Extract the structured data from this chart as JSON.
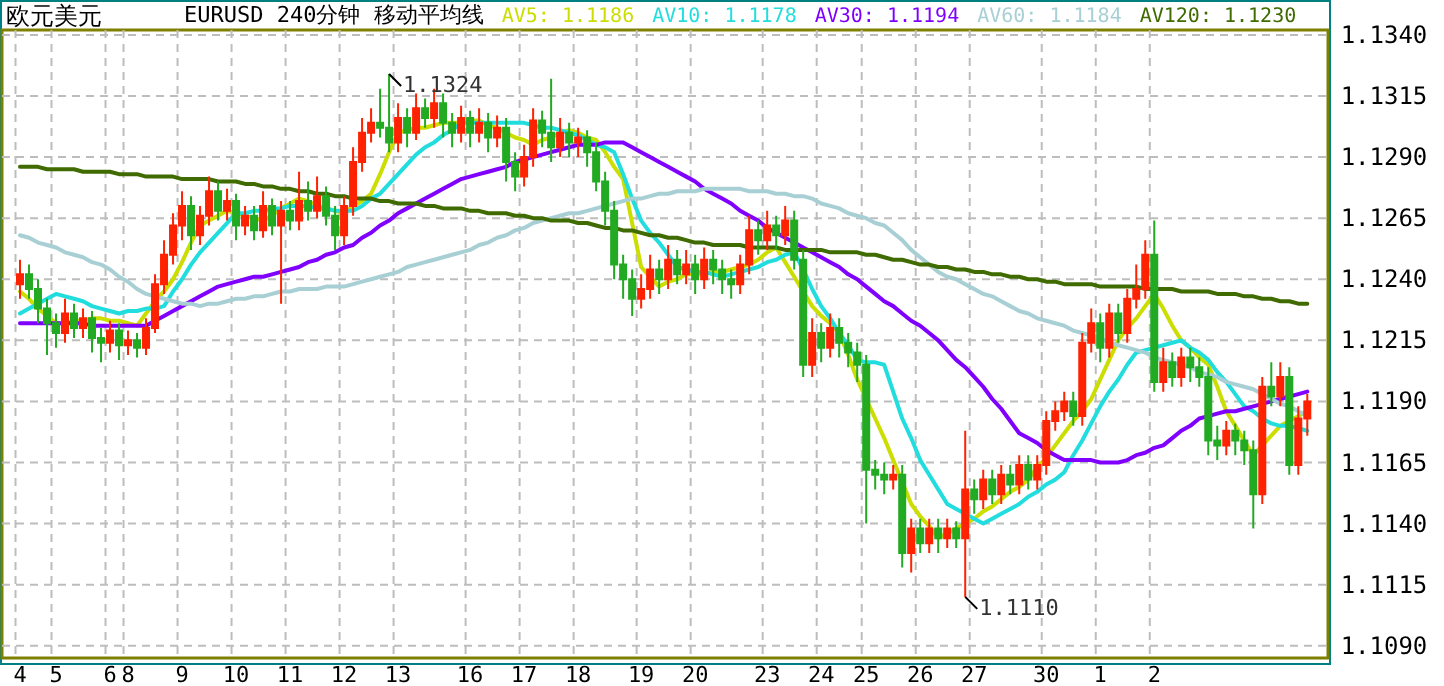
{
  "chart_data": {
    "type": "candlestick",
    "title": "欧元美元",
    "subtitle": "EURUSD 240分钟 移动平均线",
    "legend": "top",
    "grid": true,
    "ylim": [
      1.1085,
      1.1342
    ],
    "categories": [
      "4",
      null,
      null,
      null,
      "5",
      null,
      null,
      null,
      null,
      null,
      "6",
      null,
      "8",
      null,
      null,
      null,
      null,
      null,
      "9",
      null,
      null,
      null,
      null,
      null,
      "10",
      null,
      null,
      null,
      null,
      null,
      "11",
      null,
      null,
      null,
      null,
      null,
      "12",
      null,
      null,
      null,
      null,
      null,
      "13",
      null,
      null,
      null,
      null,
      null,
      null,
      null,
      "16",
      null,
      null,
      null,
      null,
      null,
      "17",
      null,
      null,
      null,
      null,
      null,
      "18",
      null,
      null,
      null,
      null,
      null,
      null,
      "19",
      null,
      null,
      null,
      null,
      null,
      "20",
      null,
      null,
      null,
      null,
      null,
      null,
      null,
      "23",
      null,
      null,
      null,
      null,
      null,
      "24",
      null,
      null,
      null,
      null,
      "25",
      null,
      null,
      null,
      null,
      null,
      "26",
      null,
      null,
      null,
      null,
      null,
      "27",
      null,
      null,
      null,
      null,
      null,
      null,
      null,
      "30",
      null,
      null,
      null,
      null,
      null,
      "1",
      null,
      null,
      null,
      null,
      null,
      "2",
      null,
      null,
      null,
      null,
      null,
      null,
      null,
      null,
      null,
      null,
      null,
      null,
      null,
      null,
      null,
      null,
      null
    ],
    "yticks": [
      {
        "value": 1.109,
        "label": "1.1090"
      },
      {
        "value": 1.1115,
        "label": "1.1115"
      },
      {
        "value": 1.114,
        "label": "1.1140"
      },
      {
        "value": 1.1165,
        "label": "1.1165"
      },
      {
        "value": 1.119,
        "label": "1.1190"
      },
      {
        "value": 1.1215,
        "label": "1.1215"
      },
      {
        "value": 1.124,
        "label": "1.1240"
      },
      {
        "value": 1.1265,
        "label": "1.1265"
      },
      {
        "value": 1.129,
        "label": "1.1290"
      },
      {
        "value": 1.1315,
        "label": "1.1315"
      },
      {
        "value": 1.134,
        "label": "1.1340"
      }
    ],
    "annotations": [
      "1.1324",
      "1.1110"
    ],
    "ohlc": [
      [
        1.1238,
        1.1248,
        1.1232,
        1.1242
      ],
      [
        1.1242,
        1.1246,
        1.1232,
        1.1236
      ],
      [
        1.1236,
        1.124,
        1.1222,
        1.1228
      ],
      [
        1.1228,
        1.1232,
        1.1209,
        1.1222
      ],
      [
        1.1222,
        1.1226,
        1.1212,
        1.1218
      ],
      [
        1.1218,
        1.1232,
        1.1214,
        1.1226
      ],
      [
        1.1226,
        1.123,
        1.1216,
        1.122
      ],
      [
        1.122,
        1.1228,
        1.1216,
        1.1224
      ],
      [
        1.1224,
        1.1227,
        1.121,
        1.1216
      ],
      [
        1.1216,
        1.122,
        1.1206,
        1.1214
      ],
      [
        1.1214,
        1.1223,
        1.121,
        1.1219
      ],
      [
        1.1219,
        1.1222,
        1.1207,
        1.1213
      ],
      [
        1.1213,
        1.1219,
        1.1209,
        1.1215
      ],
      [
        1.1215,
        1.1218,
        1.1208,
        1.1212
      ],
      [
        1.1212,
        1.1224,
        1.1209,
        1.122
      ],
      [
        1.122,
        1.1242,
        1.1218,
        1.1238
      ],
      [
        1.1238,
        1.1256,
        1.1234,
        1.125
      ],
      [
        1.125,
        1.1267,
        1.1246,
        1.1262
      ],
      [
        1.1262,
        1.1276,
        1.1256,
        1.127
      ],
      [
        1.127,
        1.1274,
        1.1252,
        1.1258
      ],
      [
        1.1258,
        1.127,
        1.1254,
        1.1266
      ],
      [
        1.1266,
        1.1282,
        1.1262,
        1.1276
      ],
      [
        1.1276,
        1.128,
        1.1264,
        1.1268
      ],
      [
        1.1268,
        1.1277,
        1.1264,
        1.1272
      ],
      [
        1.1272,
        1.1275,
        1.1256,
        1.1262
      ],
      [
        1.1262,
        1.127,
        1.1258,
        1.1266
      ],
      [
        1.1266,
        1.127,
        1.1256,
        1.126
      ],
      [
        1.126,
        1.1276,
        1.1257,
        1.127
      ],
      [
        1.127,
        1.1273,
        1.1258,
        1.1262
      ],
      [
        1.1262,
        1.1272,
        1.123,
        1.1268
      ],
      [
        1.1268,
        1.1272,
        1.126,
        1.1264
      ],
      [
        1.1264,
        1.1284,
        1.126,
        1.1272
      ],
      [
        1.1272,
        1.128,
        1.1264,
        1.1268
      ],
      [
        1.1268,
        1.1282,
        1.1265,
        1.1274
      ],
      [
        1.1274,
        1.1278,
        1.1262,
        1.1266
      ],
      [
        1.1266,
        1.127,
        1.1252,
        1.1258
      ],
      [
        1.1258,
        1.1274,
        1.1254,
        1.127
      ],
      [
        1.127,
        1.1294,
        1.1266,
        1.1288
      ],
      [
        1.1288,
        1.1306,
        1.1284,
        1.13
      ],
      [
        1.13,
        1.131,
        1.1296,
        1.1304
      ],
      [
        1.1304,
        1.1318,
        1.1298,
        1.1302
      ],
      [
        1.1302,
        1.1324,
        1.1292,
        1.1296
      ],
      [
        1.1296,
        1.1312,
        1.1292,
        1.1306
      ],
      [
        1.1306,
        1.131,
        1.1294,
        1.13
      ],
      [
        1.13,
        1.1316,
        1.1297,
        1.131
      ],
      [
        1.131,
        1.1314,
        1.1302,
        1.1306
      ],
      [
        1.1306,
        1.1318,
        1.1302,
        1.1312
      ],
      [
        1.1312,
        1.1316,
        1.1298,
        1.1304
      ],
      [
        1.1304,
        1.1308,
        1.1294,
        1.13
      ],
      [
        1.13,
        1.1311,
        1.1296,
        1.1306
      ],
      [
        1.1306,
        1.1309,
        1.1294,
        1.13
      ],
      [
        1.13,
        1.131,
        1.1296,
        1.1304
      ],
      [
        1.1304,
        1.1308,
        1.1292,
        1.1298
      ],
      [
        1.1298,
        1.1307,
        1.1294,
        1.1302
      ],
      [
        1.1302,
        1.1306,
        1.128,
        1.1288
      ],
      [
        1.1288,
        1.1292,
        1.1276,
        1.1282
      ],
      [
        1.1282,
        1.1295,
        1.1278,
        1.129
      ],
      [
        1.129,
        1.131,
        1.1286,
        1.1305
      ],
      [
        1.1305,
        1.1309,
        1.1294,
        1.13
      ],
      [
        1.13,
        1.1322,
        1.1288,
        1.1294
      ],
      [
        1.1294,
        1.1306,
        1.129,
        1.13
      ],
      [
        1.13,
        1.1304,
        1.129,
        1.1296
      ],
      [
        1.1296,
        1.1302,
        1.129,
        1.1298
      ],
      [
        1.1298,
        1.1301,
        1.1286,
        1.1292
      ],
      [
        1.1292,
        1.1296,
        1.1276,
        1.128
      ],
      [
        1.128,
        1.1284,
        1.1262,
        1.1268
      ],
      [
        1.1268,
        1.1272,
        1.124,
        1.1246
      ],
      [
        1.1246,
        1.125,
        1.1232,
        1.124
      ],
      [
        1.124,
        1.1244,
        1.1225,
        1.1232
      ],
      [
        1.1232,
        1.1242,
        1.1228,
        1.1236
      ],
      [
        1.1236,
        1.125,
        1.1232,
        1.1244
      ],
      [
        1.1244,
        1.1248,
        1.1234,
        1.124
      ],
      [
        1.124,
        1.1254,
        1.1236,
        1.1248
      ],
      [
        1.1248,
        1.1252,
        1.1238,
        1.1242
      ],
      [
        1.1242,
        1.1252,
        1.1238,
        1.1246
      ],
      [
        1.1246,
        1.125,
        1.1234,
        1.124
      ],
      [
        1.124,
        1.1253,
        1.1236,
        1.1248
      ],
      [
        1.1248,
        1.1252,
        1.1238,
        1.1244
      ],
      [
        1.1244,
        1.1248,
        1.1234,
        1.124
      ],
      [
        1.124,
        1.1244,
        1.1232,
        1.1238
      ],
      [
        1.1238,
        1.125,
        1.1234,
        1.1246
      ],
      [
        1.1246,
        1.1266,
        1.1242,
        1.126
      ],
      [
        1.126,
        1.1264,
        1.125,
        1.1256
      ],
      [
        1.1256,
        1.1268,
        1.1252,
        1.1262
      ],
      [
        1.1262,
        1.1266,
        1.1252,
        1.1258
      ],
      [
        1.1258,
        1.127,
        1.1254,
        1.1264
      ],
      [
        1.1264,
        1.1268,
        1.1244,
        1.1248
      ],
      [
        1.1248,
        1.1252,
        1.12,
        1.1205
      ],
      [
        1.1205,
        1.1224,
        1.12,
        1.1218
      ],
      [
        1.1218,
        1.1222,
        1.1206,
        1.1212
      ],
      [
        1.1212,
        1.1226,
        1.1208,
        1.122
      ],
      [
        1.122,
        1.1224,
        1.1208,
        1.1214
      ],
      [
        1.1214,
        1.1218,
        1.1204,
        1.121
      ],
      [
        1.121,
        1.1214,
        1.1198,
        1.1205
      ],
      [
        1.1205,
        1.1209,
        1.114,
        1.1162
      ],
      [
        1.1162,
        1.1166,
        1.1154,
        1.116
      ],
      [
        1.116,
        1.1165,
        1.1152,
        1.1158
      ],
      [
        1.1158,
        1.1164,
        1.1154,
        1.116
      ],
      [
        1.116,
        1.1164,
        1.1122,
        1.1128
      ],
      [
        1.1128,
        1.1142,
        1.112,
        1.1138
      ],
      [
        1.1138,
        1.1142,
        1.1128,
        1.1132
      ],
      [
        1.1132,
        1.1142,
        1.1128,
        1.1138
      ],
      [
        1.1138,
        1.1142,
        1.1128,
        1.1134
      ],
      [
        1.1134,
        1.1142,
        1.113,
        1.1138
      ],
      [
        1.1138,
        1.1141,
        1.113,
        1.1134
      ],
      [
        1.1134,
        1.1178,
        1.111,
        1.1154
      ],
      [
        1.1154,
        1.1158,
        1.1144,
        1.115
      ],
      [
        1.115,
        1.1162,
        1.1146,
        1.1158
      ],
      [
        1.1158,
        1.1162,
        1.1148,
        1.1152
      ],
      [
        1.1152,
        1.1164,
        1.1148,
        1.116
      ],
      [
        1.116,
        1.1164,
        1.1152,
        1.1156
      ],
      [
        1.1156,
        1.1168,
        1.1152,
        1.1164
      ],
      [
        1.1164,
        1.1168,
        1.1154,
        1.1158
      ],
      [
        1.1158,
        1.1168,
        1.1154,
        1.1164
      ],
      [
        1.1164,
        1.1186,
        1.116,
        1.1182
      ],
      [
        1.1182,
        1.119,
        1.1178,
        1.1186
      ],
      [
        1.1186,
        1.1194,
        1.1182,
        1.119
      ],
      [
        1.119,
        1.1194,
        1.118,
        1.1184
      ],
      [
        1.1184,
        1.1218,
        1.118,
        1.1214
      ],
      [
        1.1214,
        1.1228,
        1.121,
        1.1222
      ],
      [
        1.1222,
        1.1226,
        1.1206,
        1.1212
      ],
      [
        1.1212,
        1.123,
        1.1208,
        1.1226
      ],
      [
        1.1226,
        1.123,
        1.1214,
        1.1218
      ],
      [
        1.1218,
        1.1236,
        1.1214,
        1.1232
      ],
      [
        1.1232,
        1.1246,
        1.1228,
        1.1236
      ],
      [
        1.1236,
        1.1256,
        1.1232,
        1.125
      ],
      [
        1.125,
        1.1264,
        1.1194,
        1.1198
      ],
      [
        1.1198,
        1.1212,
        1.1194,
        1.1206
      ],
      [
        1.1206,
        1.121,
        1.1196,
        1.12
      ],
      [
        1.12,
        1.1212,
        1.1196,
        1.1208
      ],
      [
        1.1208,
        1.1212,
        1.1198,
        1.1204
      ],
      [
        1.1204,
        1.1208,
        1.1196,
        1.12
      ],
      [
        1.12,
        1.1204,
        1.1168,
        1.1174
      ],
      [
        1.1174,
        1.118,
        1.1166,
        1.1172
      ],
      [
        1.1172,
        1.1182,
        1.1168,
        1.1178
      ],
      [
        1.1178,
        1.1181,
        1.1168,
        1.1174
      ],
      [
        1.1174,
        1.1178,
        1.1164,
        1.117
      ],
      [
        1.117,
        1.1174,
        1.1138,
        1.1152
      ],
      [
        1.1152,
        1.12,
        1.1148,
        1.1196
      ],
      [
        1.1196,
        1.1206,
        1.1188,
        1.1192
      ],
      [
        1.1192,
        1.1206,
        1.1188,
        1.12
      ],
      [
        1.12,
        1.1204,
        1.116,
        1.1164
      ],
      [
        1.1164,
        1.1188,
        1.116,
        1.1183
      ],
      [
        1.1183,
        1.1193,
        1.1176,
        1.119
      ]
    ],
    "colors": [
      "#ff2200",
      "#22aa22",
      "#22aa22",
      "#22aa22",
      "#22aa22",
      "#ff2200",
      "#22aa22",
      "#ff2200",
      "#22aa22",
      "#22aa22",
      "#ff2200",
      "#22aa22",
      "#ff2200",
      "#22aa22",
      "#ff2200",
      "#ff2200",
      "#ff2200",
      "#ff2200",
      "#ff2200",
      "#22aa22",
      "#ff2200",
      "#ff2200",
      "#22aa22",
      "#ff2200",
      "#22aa22",
      "#ff2200",
      "#22aa22",
      "#ff2200",
      "#22aa22",
      "#ff2200",
      "#22aa22",
      "#ff2200",
      "#22aa22",
      "#ff2200",
      "#22aa22",
      "#22aa22",
      "#ff2200",
      "#ff2200",
      "#ff2200",
      "#ff2200",
      "#22aa22",
      "#22aa22",
      "#ff2200",
      "#22aa22",
      "#ff2200",
      "#22aa22",
      "#ff2200",
      "#22aa22",
      "#22aa22",
      "#ff2200",
      "#22aa22",
      "#ff2200",
      "#22aa22",
      "#ff2200",
      "#22aa22",
      "#22aa22",
      "#ff2200",
      "#ff2200",
      "#22aa22",
      "#22aa22",
      "#ff2200",
      "#22aa22",
      "#ff2200",
      "#22aa22",
      "#22aa22",
      "#22aa22",
      "#22aa22",
      "#22aa22",
      "#22aa22",
      "#ff2200",
      "#ff2200",
      "#22aa22",
      "#ff2200",
      "#22aa22",
      "#ff2200",
      "#22aa22",
      "#ff2200",
      "#22aa22",
      "#22aa22",
      "#22aa22",
      "#ff2200",
      "#ff2200",
      "#22aa22",
      "#ff2200",
      "#22aa22",
      "#ff2200",
      "#22aa22",
      "#22aa22",
      "#ff2200",
      "#22aa22",
      "#ff2200",
      "#22aa22",
      "#22aa22",
      "#22aa22",
      "#22aa22",
      "#22aa22",
      "#22aa22",
      "#ff2200",
      "#22aa22",
      "#ff2200",
      "#22aa22",
      "#ff2200",
      "#22aa22",
      "#ff2200",
      "#22aa22",
      "#ff2200",
      "#22aa22",
      "#ff2200",
      "#22aa22",
      "#ff2200",
      "#22aa22",
      "#ff2200",
      "#22aa22",
      "#ff2200",
      "#ff2200",
      "#ff2200",
      "#ff2200",
      "#22aa22",
      "#ff2200",
      "#ff2200",
      "#22aa22",
      "#ff2200",
      "#22aa22",
      "#ff2200",
      "#ff2200",
      "#ff2200",
      "#22aa22",
      "#ff2200",
      "#22aa22",
      "#ff2200",
      "#22aa22",
      "#22aa22",
      "#22aa22",
      "#22aa22",
      "#ff2200",
      "#22aa22",
      "#22aa22",
      "#22aa22",
      "#ff2200",
      "#22aa22",
      "#ff2200",
      "#22aa22",
      "#ff2200",
      "#ff2200"
    ],
    "series": [
      {
        "name": "AV5: 1.1186",
        "type": "line",
        "color": "#ccdd00",
        "values": [
          1.1235,
          1.1232,
          1.1228,
          1.1225,
          1.1222,
          1.1222,
          1.1223,
          1.1223,
          1.1224,
          1.1224,
          1.1223,
          1.1223,
          1.1222,
          1.1221,
          1.1226,
          1.1231,
          1.1235,
          1.124,
          1.1247,
          1.1255,
          1.1262,
          1.1264,
          1.1266,
          1.1268,
          1.1267,
          1.1266,
          1.1265,
          1.1264,
          1.1266,
          1.1269,
          1.1271,
          1.1273,
          1.1272,
          1.127,
          1.1269,
          1.1268,
          1.1267,
          1.127,
          1.1272,
          1.1275,
          1.1283,
          1.1292,
          1.13,
          1.1301,
          1.1302,
          1.1302,
          1.1303,
          1.1304,
          1.1304,
          1.1304,
          1.1305,
          1.1305,
          1.1303,
          1.1302,
          1.13,
          1.1298,
          1.1297,
          1.1295,
          1.1297,
          1.1298,
          1.13,
          1.1301,
          1.13,
          1.1298,
          1.1297,
          1.1292,
          1.1286,
          1.1281,
          1.1263,
          1.1245,
          1.1241,
          1.1237,
          1.1239,
          1.124,
          1.1242,
          1.1242,
          1.1242,
          1.1243,
          1.1243,
          1.1244,
          1.1245,
          1.1246,
          1.1248,
          1.1251,
          1.1253,
          1.1247,
          1.1241,
          1.1235,
          1.1229,
          1.1225,
          1.1222,
          1.1218,
          1.1209,
          1.1199,
          1.1191,
          1.1183,
          1.1175,
          1.1166,
          1.1157,
          1.1148,
          1.1143,
          1.1139,
          1.1134,
          1.1136,
          1.1138,
          1.114,
          1.1142,
          1.1145,
          1.1147,
          1.115,
          1.1153,
          1.1155,
          1.1158,
          1.1163,
          1.1167,
          1.1172,
          1.1177,
          1.1182,
          1.1186,
          1.1191,
          1.1199,
          1.1207,
          1.1215,
          1.122,
          1.1224,
          1.1229,
          1.1234,
          1.1228,
          1.1221,
          1.1215,
          1.1212,
          1.1208,
          1.1205,
          1.1196,
          1.1186,
          1.118,
          1.1174,
          1.1168,
          1.1172,
          1.1176,
          1.118,
          1.1182,
          1.1184,
          1.1186
        ]
      },
      {
        "name": "AV10: 1.1178",
        "type": "line",
        "color": "#22dddd",
        "values": [
          1.1226,
          1.1228,
          1.123,
          1.1232,
          1.1234,
          1.1233,
          1.1232,
          1.1231,
          1.1229,
          1.1228,
          1.1227,
          1.1226,
          1.1227,
          1.1227,
          1.1228,
          1.1228,
          1.1229,
          1.1235,
          1.124,
          1.1246,
          1.1251,
          1.1255,
          1.1259,
          1.1263,
          1.1267,
          1.1267,
          1.1268,
          1.1268,
          1.1269,
          1.1269,
          1.127,
          1.127,
          1.127,
          1.1269,
          1.1269,
          1.1268,
          1.1268,
          1.1268,
          1.127,
          1.1273,
          1.1275,
          1.1279,
          1.1283,
          1.1287,
          1.1291,
          1.1294,
          1.1296,
          1.1299,
          1.1301,
          1.1304,
          1.1304,
          1.1304,
          1.1304,
          1.1304,
          1.1304,
          1.1304,
          1.1304,
          1.1303,
          1.1302,
          1.1302,
          1.1301,
          1.13,
          1.1299,
          1.1297,
          1.1295,
          1.1294,
          1.1292,
          1.1283,
          1.1273,
          1.1264,
          1.1259,
          1.1255,
          1.125,
          1.1245,
          1.1244,
          1.1243,
          1.1243,
          1.1242,
          1.1241,
          1.1242,
          1.1243,
          1.1244,
          1.1245,
          1.1247,
          1.1248,
          1.125,
          1.1251,
          1.1244,
          1.1236,
          1.1229,
          1.1224,
          1.1218,
          1.1213,
          1.1207,
          1.1206,
          1.1206,
          1.1205,
          1.1194,
          1.1183,
          1.1175,
          1.1166,
          1.116,
          1.1154,
          1.1148,
          1.1146,
          1.1144,
          1.1142,
          1.114,
          1.1142,
          1.1144,
          1.1146,
          1.1148,
          1.1151,
          1.1153,
          1.1156,
          1.1158,
          1.1161,
          1.1168,
          1.1174,
          1.1181,
          1.1188,
          1.1194,
          1.1199,
          1.1205,
          1.121,
          1.1211,
          1.1212,
          1.1213,
          1.1214,
          1.1215,
          1.1212,
          1.121,
          1.1207,
          1.1202,
          1.1198,
          1.1193,
          1.1188,
          1.1186,
          1.1183,
          1.1181,
          1.118,
          1.118,
          1.1179,
          1.1178
        ]
      },
      {
        "name": "AV30: 1.1194",
        "type": "line",
        "color": "#8000ff",
        "values": [
          1.1222,
          1.1222,
          1.1222,
          1.1222,
          1.1222,
          1.1222,
          1.1222,
          1.1222,
          1.1221,
          1.1221,
          1.1221,
          1.1221,
          1.1221,
          1.1221,
          1.1221,
          1.1223,
          1.1225,
          1.1227,
          1.1229,
          1.1231,
          1.1233,
          1.1235,
          1.1237,
          1.1238,
          1.1239,
          1.124,
          1.1241,
          1.1241,
          1.1242,
          1.1243,
          1.1244,
          1.1245,
          1.1247,
          1.1248,
          1.125,
          1.1251,
          1.1253,
          1.1254,
          1.1257,
          1.1259,
          1.1262,
          1.1264,
          1.1267,
          1.1269,
          1.1271,
          1.1273,
          1.1275,
          1.1277,
          1.1279,
          1.1281,
          1.1282,
          1.1283,
          1.1284,
          1.1285,
          1.1286,
          1.1288,
          1.1289,
          1.129,
          1.1291,
          1.1292,
          1.1293,
          1.1294,
          1.1295,
          1.1295,
          1.1295,
          1.1296,
          1.1296,
          1.1296,
          1.1294,
          1.1292,
          1.129,
          1.1288,
          1.1286,
          1.1284,
          1.1282,
          1.128,
          1.1277,
          1.1275,
          1.1273,
          1.1271,
          1.1268,
          1.1266,
          1.1264,
          1.1261,
          1.1259,
          1.1257,
          1.1255,
          1.1253,
          1.1251,
          1.1249,
          1.1247,
          1.1245,
          1.1242,
          1.124,
          1.1237,
          1.1234,
          1.1231,
          1.1229,
          1.1226,
          1.1223,
          1.1221,
          1.1218,
          1.1215,
          1.1211,
          1.1207,
          1.1204,
          1.12,
          1.1196,
          1.1191,
          1.1187,
          1.1182,
          1.1177,
          1.1175,
          1.1173,
          1.117,
          1.1168,
          1.1166,
          1.1166,
          1.1166,
          1.1166,
          1.1165,
          1.1165,
          1.1165,
          1.1166,
          1.1168,
          1.1169,
          1.1171,
          1.1172,
          1.1175,
          1.1178,
          1.118,
          1.1183,
          1.1184,
          1.1185,
          1.1186,
          1.1186,
          1.1187,
          1.1188,
          1.1189,
          1.119,
          1.1191,
          1.1192,
          1.1193,
          1.1194
        ]
      },
      {
        "name": "AV60: 1.1184",
        "type": "line",
        "color": "#a8d0d4",
        "values": [
          1.1258,
          1.1257,
          1.1255,
          1.1254,
          1.1253,
          1.1251,
          1.125,
          1.1249,
          1.1247,
          1.1246,
          1.1244,
          1.1241,
          1.1239,
          1.1236,
          1.1234,
          1.1233,
          1.1232,
          1.1231,
          1.123,
          1.123,
          1.1229,
          1.123,
          1.123,
          1.1231,
          1.1232,
          1.1232,
          1.1233,
          1.1233,
          1.1234,
          1.1235,
          1.1235,
          1.1236,
          1.1236,
          1.1236,
          1.1237,
          1.1237,
          1.1237,
          1.1238,
          1.1239,
          1.124,
          1.1241,
          1.1242,
          1.1243,
          1.1245,
          1.1246,
          1.1247,
          1.1248,
          1.1249,
          1.125,
          1.1251,
          1.1252,
          1.1254,
          1.1255,
          1.1257,
          1.1258,
          1.126,
          1.1261,
          1.1263,
          1.1264,
          1.1265,
          1.1266,
          1.1267,
          1.1267,
          1.1268,
          1.1269,
          1.127,
          1.1271,
          1.1272,
          1.1273,
          1.1273,
          1.1274,
          1.1275,
          1.1275,
          1.1276,
          1.1276,
          1.1276,
          1.1277,
          1.1277,
          1.1277,
          1.1277,
          1.1277,
          1.1276,
          1.1276,
          1.1276,
          1.1275,
          1.1275,
          1.1274,
          1.1274,
          1.1273,
          1.1271,
          1.127,
          1.1269,
          1.1267,
          1.1266,
          1.1265,
          1.1263,
          1.1262,
          1.1259,
          1.1256,
          1.1252,
          1.1249,
          1.1246,
          1.1243,
          1.1241,
          1.124,
          1.1238,
          1.1236,
          1.1234,
          1.1233,
          1.1231,
          1.1229,
          1.1227,
          1.1226,
          1.1224,
          1.1223,
          1.1222,
          1.1221,
          1.1219,
          1.1218,
          1.1217,
          1.1216,
          1.1214,
          1.1213,
          1.1212,
          1.1211,
          1.121,
          1.1208,
          1.1207,
          1.1206,
          1.1205,
          1.1204,
          1.1202,
          1.1201,
          1.12,
          1.1198,
          1.1197,
          1.1196,
          1.1195,
          1.1193,
          1.1191,
          1.1189,
          1.1188,
          1.1186,
          1.1184
        ]
      },
      {
        "name": "AV120: 1.1230",
        "type": "line",
        "color": "#3f6b00",
        "values": [
          1.1286,
          1.1286,
          1.1286,
          1.1285,
          1.1285,
          1.1285,
          1.1285,
          1.1284,
          1.1284,
          1.1284,
          1.1284,
          1.1283,
          1.1283,
          1.1283,
          1.1282,
          1.1282,
          1.1282,
          1.1282,
          1.1281,
          1.1281,
          1.1281,
          1.1281,
          1.128,
          1.128,
          1.128,
          1.1279,
          1.1279,
          1.1278,
          1.1278,
          1.1277,
          1.1277,
          1.1276,
          1.1276,
          1.1275,
          1.1275,
          1.1274,
          1.1274,
          1.1273,
          1.1273,
          1.1273,
          1.1272,
          1.1272,
          1.1271,
          1.1271,
          1.1271,
          1.127,
          1.127,
          1.1269,
          1.1269,
          1.1269,
          1.1268,
          1.1268,
          1.1267,
          1.1267,
          1.1267,
          1.1266,
          1.1266,
          1.1265,
          1.1265,
          1.1264,
          1.1264,
          1.1264,
          1.1263,
          1.1263,
          1.1262,
          1.1261,
          1.1261,
          1.126,
          1.126,
          1.1259,
          1.1258,
          1.1258,
          1.1257,
          1.1257,
          1.1256,
          1.1255,
          1.1255,
          1.1254,
          1.1254,
          1.1254,
          1.1254,
          1.1253,
          1.1253,
          1.1253,
          1.1253,
          1.1252,
          1.1252,
          1.1252,
          1.1252,
          1.1252,
          1.1251,
          1.1251,
          1.1251,
          1.1251,
          1.125,
          1.125,
          1.1249,
          1.1248,
          1.1248,
          1.1247,
          1.1246,
          1.1246,
          1.1245,
          1.1245,
          1.1244,
          1.1244,
          1.1243,
          1.1243,
          1.1242,
          1.1242,
          1.1241,
          1.1241,
          1.124,
          1.124,
          1.1239,
          1.1239,
          1.1238,
          1.1238,
          1.1238,
          1.1238,
          1.1237,
          1.1237,
          1.1237,
          1.1237,
          1.1237,
          1.1236,
          1.1236,
          1.1236,
          1.1236,
          1.1235,
          1.1235,
          1.1235,
          1.1235,
          1.1234,
          1.1234,
          1.1234,
          1.1233,
          1.1233,
          1.1232,
          1.1232,
          1.1231,
          1.1231,
          1.123,
          1.123
        ]
      }
    ]
  }
}
